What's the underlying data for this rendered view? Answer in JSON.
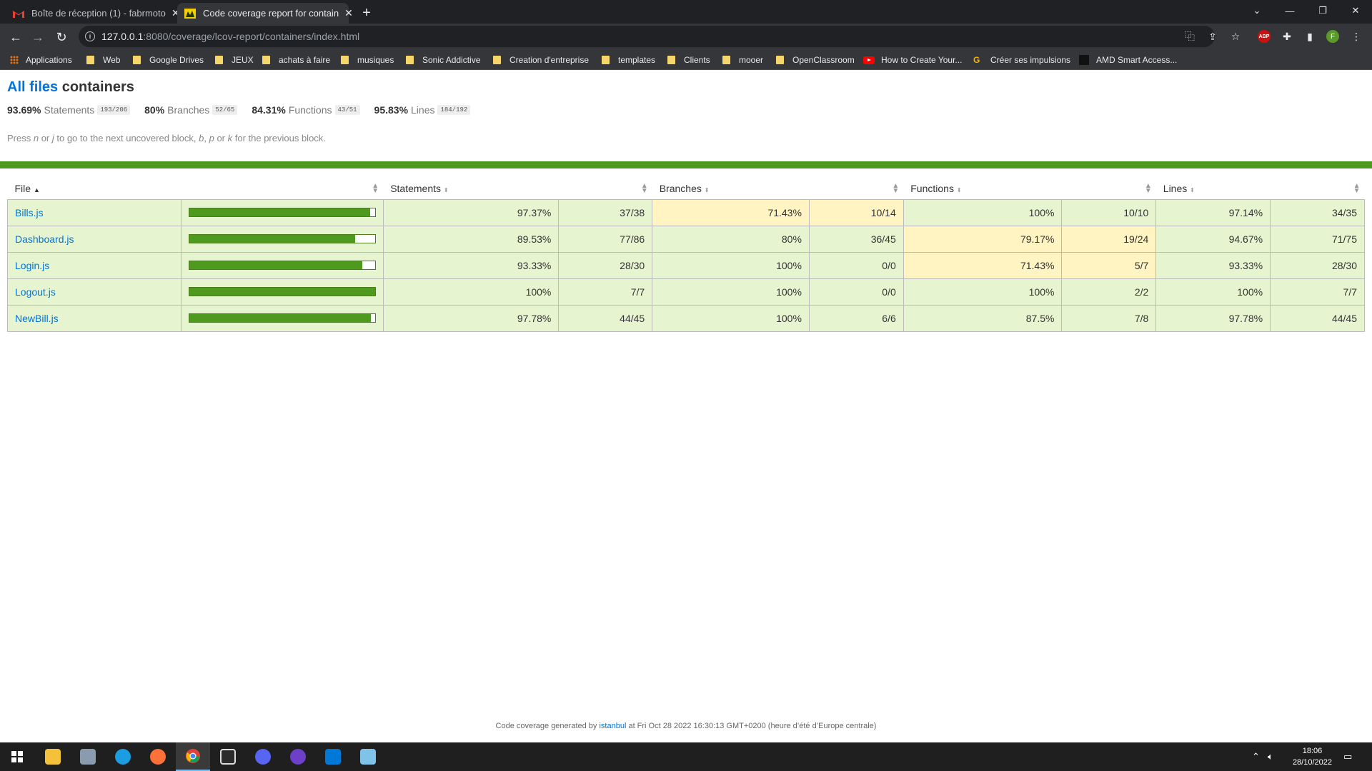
{
  "browser": {
    "tabs": [
      {
        "title": "Boîte de réception (1) - fabrmoto",
        "favicon": "gmail-icon",
        "active": false
      },
      {
        "title": "Code coverage report for contain",
        "favicon": "istanbul-icon",
        "active": true
      }
    ],
    "address": {
      "host": "127.0.0.1",
      "rest": ":8080/coverage/lcov-report/containers/index.html"
    },
    "bookmarks": [
      {
        "label": "Applications",
        "icon": "apps-icon"
      },
      {
        "label": "Web",
        "icon": "folder-icon"
      },
      {
        "label": "Google Drives",
        "icon": "folder-icon"
      },
      {
        "label": "JEUX",
        "icon": "folder-icon"
      },
      {
        "label": "achats à faire",
        "icon": "folder-icon"
      },
      {
        "label": "musiques",
        "icon": "folder-icon"
      },
      {
        "label": "Sonic Addictive",
        "icon": "folder-icon"
      },
      {
        "label": "Creation d'entreprise",
        "icon": "folder-icon"
      },
      {
        "label": "templates",
        "icon": "folder-icon"
      },
      {
        "label": "Clients",
        "icon": "folder-icon"
      },
      {
        "label": "mooer",
        "icon": "folder-icon"
      },
      {
        "label": "OpenClassroom",
        "icon": "folder-icon"
      },
      {
        "label": "How to Create Your...",
        "icon": "youtube-icon"
      },
      {
        "label": "Créer ses impulsions",
        "icon": "site-icon"
      },
      {
        "label": "AMD Smart Access...",
        "icon": "amd-icon"
      }
    ],
    "profile_initial": "F",
    "extension_label": "ABP"
  },
  "report": {
    "breadcrumb_link": "All files",
    "title": "containers",
    "summary": [
      {
        "pct": "93.69%",
        "label": "Statements",
        "frac": "193/206"
      },
      {
        "pct": "80%",
        "label": "Branches",
        "frac": "52/65"
      },
      {
        "pct": "84.31%",
        "label": "Functions",
        "frac": "43/51"
      },
      {
        "pct": "95.83%",
        "label": "Lines",
        "frac": "184/192"
      }
    ],
    "hint": {
      "p1": "Press ",
      "k1": "n",
      "p2": " or ",
      "k2": "j",
      "p3": " to go to the next uncovered block, ",
      "k3": "b",
      "p4": ", ",
      "k4": "p",
      "p5": " or ",
      "k5": "k",
      "p6": " for the previous block."
    },
    "columns": {
      "file": "File",
      "statements": "Statements",
      "branches": "Branches",
      "functions": "Functions",
      "lines": "Lines"
    },
    "rows": [
      {
        "file": "Bills.js",
        "coverage": 97.37,
        "stmt_pct": "97.37%",
        "stmt_frac": "37/38",
        "br_pct": "71.43%",
        "br_frac": "10/14",
        "fn_pct": "100%",
        "fn_frac": "10/10",
        "ln_pct": "97.14%",
        "ln_frac": "34/35",
        "levels": [
          "high",
          "medium",
          "high",
          "high"
        ]
      },
      {
        "file": "Dashboard.js",
        "coverage": 89.53,
        "stmt_pct": "89.53%",
        "stmt_frac": "77/86",
        "br_pct": "80%",
        "br_frac": "36/45",
        "fn_pct": "79.17%",
        "fn_frac": "19/24",
        "ln_pct": "94.67%",
        "ln_frac": "71/75",
        "levels": [
          "high",
          "high",
          "medium",
          "high"
        ]
      },
      {
        "file": "Login.js",
        "coverage": 93.33,
        "stmt_pct": "93.33%",
        "stmt_frac": "28/30",
        "br_pct": "100%",
        "br_frac": "0/0",
        "fn_pct": "71.43%",
        "fn_frac": "5/7",
        "ln_pct": "93.33%",
        "ln_frac": "28/30",
        "levels": [
          "high",
          "high",
          "medium",
          "high"
        ]
      },
      {
        "file": "Logout.js",
        "coverage": 100,
        "stmt_pct": "100%",
        "stmt_frac": "7/7",
        "br_pct": "100%",
        "br_frac": "0/0",
        "fn_pct": "100%",
        "fn_frac": "2/2",
        "ln_pct": "100%",
        "ln_frac": "7/7",
        "levels": [
          "high",
          "high",
          "high",
          "high"
        ]
      },
      {
        "file": "NewBill.js",
        "coverage": 97.78,
        "stmt_pct": "97.78%",
        "stmt_frac": "44/45",
        "br_pct": "100%",
        "br_frac": "6/6",
        "fn_pct": "87.5%",
        "fn_frac": "7/8",
        "ln_pct": "97.78%",
        "ln_frac": "44/45",
        "levels": [
          "high",
          "high",
          "high",
          "high"
        ]
      }
    ],
    "footer": {
      "prefix": "Code coverage generated by ",
      "link": "istanbul",
      "suffix": " at Fri Oct 28 2022 16:30:13 GMT+0200 (heure d’été d’Europe centrale)"
    }
  },
  "taskbar": {
    "time": "18:06",
    "date": "28/10/2022"
  },
  "colors": {
    "high_bg": "#e6f5d0",
    "medium_bg": "#fff4c2",
    "bar_fill": "#4d9a1e",
    "link": "#0074d9"
  }
}
